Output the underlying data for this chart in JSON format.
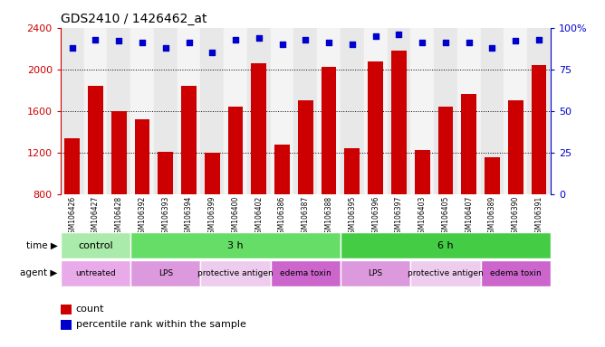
{
  "title": "GDS2410 / 1426462_at",
  "samples": [
    "GSM106426",
    "GSM106427",
    "GSM106428",
    "GSM106392",
    "GSM106393",
    "GSM106394",
    "GSM106399",
    "GSM106400",
    "GSM106402",
    "GSM106386",
    "GSM106387",
    "GSM106388",
    "GSM106395",
    "GSM106396",
    "GSM106397",
    "GSM106403",
    "GSM106405",
    "GSM106407",
    "GSM106389",
    "GSM106390",
    "GSM106391"
  ],
  "counts": [
    1340,
    1840,
    1600,
    1520,
    1210,
    1840,
    1200,
    1640,
    2060,
    1280,
    1700,
    2020,
    1240,
    2080,
    2180,
    1230,
    1640,
    1760,
    1160,
    1700,
    2040
  ],
  "percentile_ranks": [
    88,
    93,
    92,
    91,
    88,
    91,
    85,
    93,
    94,
    90,
    93,
    91,
    90,
    95,
    96,
    91,
    91,
    91,
    88,
    92,
    93
  ],
  "bar_color": "#cc0000",
  "dot_color": "#0000cc",
  "ylim_left": [
    800,
    2400
  ],
  "ylim_right": [
    0,
    100
  ],
  "yticks_left": [
    800,
    1200,
    1600,
    2000,
    2400
  ],
  "yticks_right": [
    0,
    25,
    50,
    75,
    100
  ],
  "time_groups": [
    {
      "label": "control",
      "start": 0,
      "end": 3,
      "color": "#aaeaaa"
    },
    {
      "label": "3 h",
      "start": 3,
      "end": 12,
      "color": "#66dd66"
    },
    {
      "label": "6 h",
      "start": 12,
      "end": 21,
      "color": "#44cc44"
    }
  ],
  "agent_groups": [
    {
      "label": "untreated",
      "start": 0,
      "end": 3,
      "color": "#e8aae8"
    },
    {
      "label": "LPS",
      "start": 3,
      "end": 6,
      "color": "#dd99dd"
    },
    {
      "label": "protective antigen",
      "start": 6,
      "end": 9,
      "color": "#eeccee"
    },
    {
      "label": "edema toxin",
      "start": 9,
      "end": 12,
      "color": "#cc66cc"
    },
    {
      "label": "LPS",
      "start": 12,
      "end": 15,
      "color": "#dd99dd"
    },
    {
      "label": "protective antigen",
      "start": 15,
      "end": 18,
      "color": "#eeccee"
    },
    {
      "label": "edema toxin",
      "start": 18,
      "end": 21,
      "color": "#cc66cc"
    }
  ],
  "legend_count_color": "#cc0000",
  "legend_dot_color": "#0000cc"
}
